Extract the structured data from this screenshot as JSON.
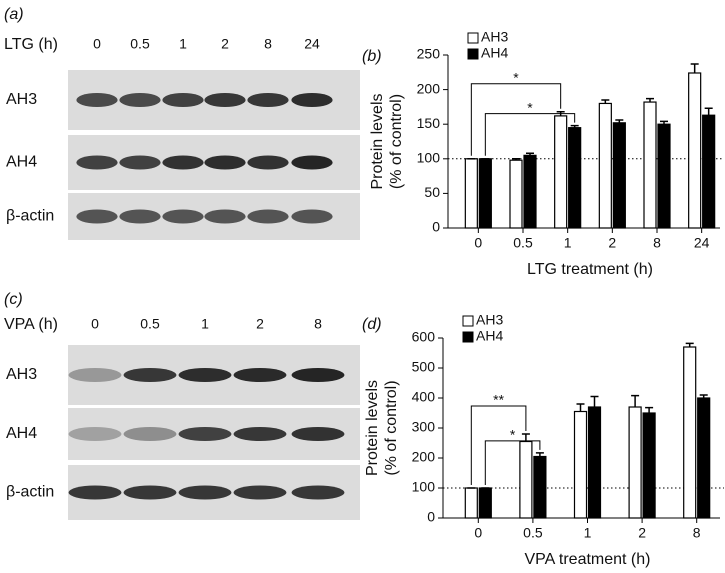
{
  "blots": [
    {
      "label": "(a)",
      "header": "LTG (h)",
      "lanes": [
        "0",
        "0.5",
        "1",
        "2",
        "8",
        "24"
      ],
      "rows": [
        "AH3",
        "AH4",
        "β-actin"
      ]
    },
    {
      "label": "(c)",
      "header": "VPA (h)",
      "lanes": [
        "0",
        "0.5",
        "1",
        "2",
        "8"
      ],
      "rows": [
        "AH3",
        "AH4",
        "β-actin"
      ]
    }
  ],
  "chart_data": [
    {
      "type": "bar",
      "panel_label": "(b)",
      "xlabel": "LTG treatment (h)",
      "ylabel": [
        "Protein levels",
        "(% of control)"
      ],
      "categories": [
        "0",
        "0.5",
        "1",
        "2",
        "8",
        "24"
      ],
      "series": [
        {
          "name": "AH3",
          "color": "#ffffff",
          "values": [
            100,
            98,
            162,
            180,
            182,
            224
          ],
          "errors": [
            0,
            2,
            6,
            5,
            5,
            13
          ]
        },
        {
          "name": "AH4",
          "color": "#000000",
          "values": [
            100,
            105,
            145,
            152,
            150,
            163
          ],
          "errors": [
            0,
            3,
            3,
            4,
            4,
            10
          ]
        }
      ],
      "ylim": [
        0,
        250
      ],
      "yticks": [
        0,
        50,
        100,
        150,
        200,
        250
      ],
      "reference_line": 100,
      "annotations": [
        "*",
        "*"
      ],
      "legend": "upper left"
    },
    {
      "type": "bar",
      "panel_label": "(d)",
      "xlabel": "VPA treatment (h)",
      "ylabel": [
        "Protein levels",
        "(% of control)"
      ],
      "categories": [
        "0",
        "0.5",
        "1",
        "2",
        "8"
      ],
      "series": [
        {
          "name": "AH3",
          "color": "#ffffff",
          "values": [
            100,
            255,
            355,
            370,
            570
          ],
          "errors": [
            0,
            25,
            25,
            38,
            12
          ]
        },
        {
          "name": "AH4",
          "color": "#000000",
          "values": [
            100,
            205,
            370,
            350,
            400
          ],
          "errors": [
            0,
            12,
            35,
            18,
            10
          ]
        }
      ],
      "ylim": [
        0,
        600
      ],
      "yticks": [
        0,
        100,
        200,
        300,
        400,
        500,
        600
      ],
      "reference_line": 100,
      "annotations": [
        "**",
        "*"
      ],
      "legend": "upper left"
    }
  ]
}
